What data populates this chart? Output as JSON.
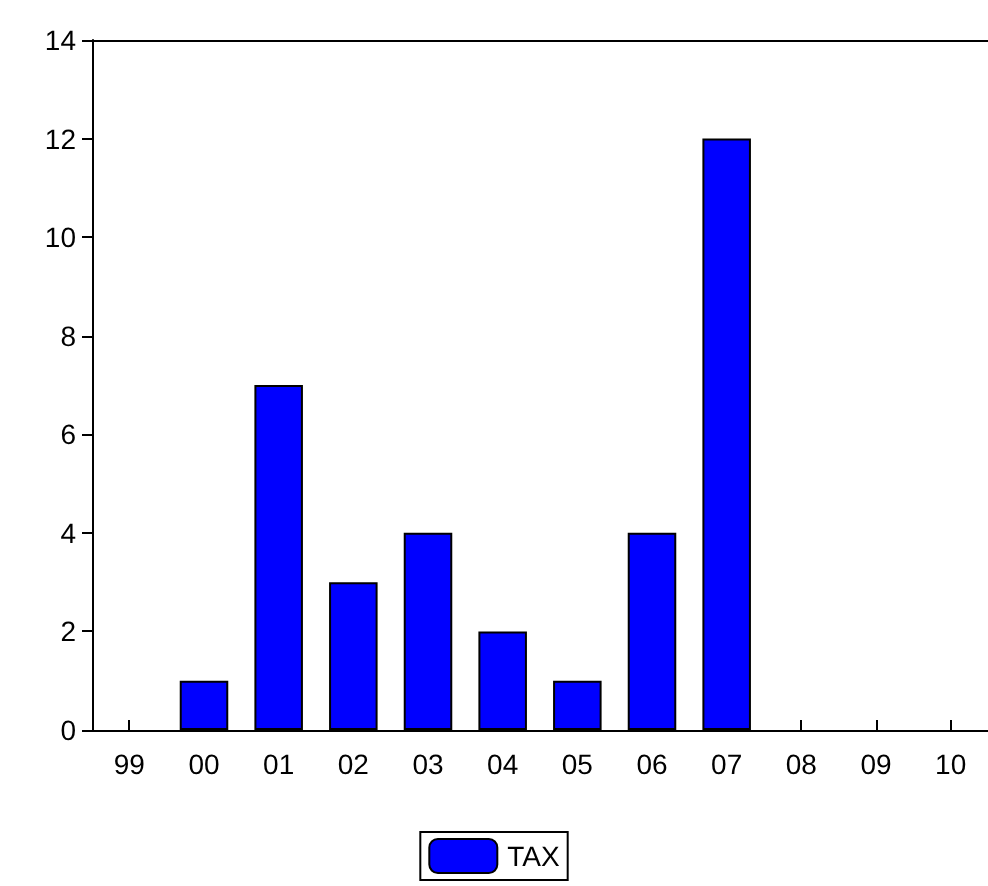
{
  "chart_data": {
    "type": "bar",
    "categories": [
      "99",
      "00",
      "01",
      "02",
      "03",
      "04",
      "05",
      "06",
      "07",
      "08",
      "09",
      "10"
    ],
    "series": [
      {
        "name": "TAX",
        "color": "#0000ff",
        "values": [
          null,
          1,
          7,
          3,
          4,
          2,
          1,
          4,
          12,
          null,
          null,
          null
        ]
      }
    ],
    "ylim": [
      0,
      14
    ],
    "yticks": [
      0,
      2,
      4,
      6,
      8,
      10,
      12,
      14
    ],
    "grid": false,
    "legend": "bottom"
  }
}
